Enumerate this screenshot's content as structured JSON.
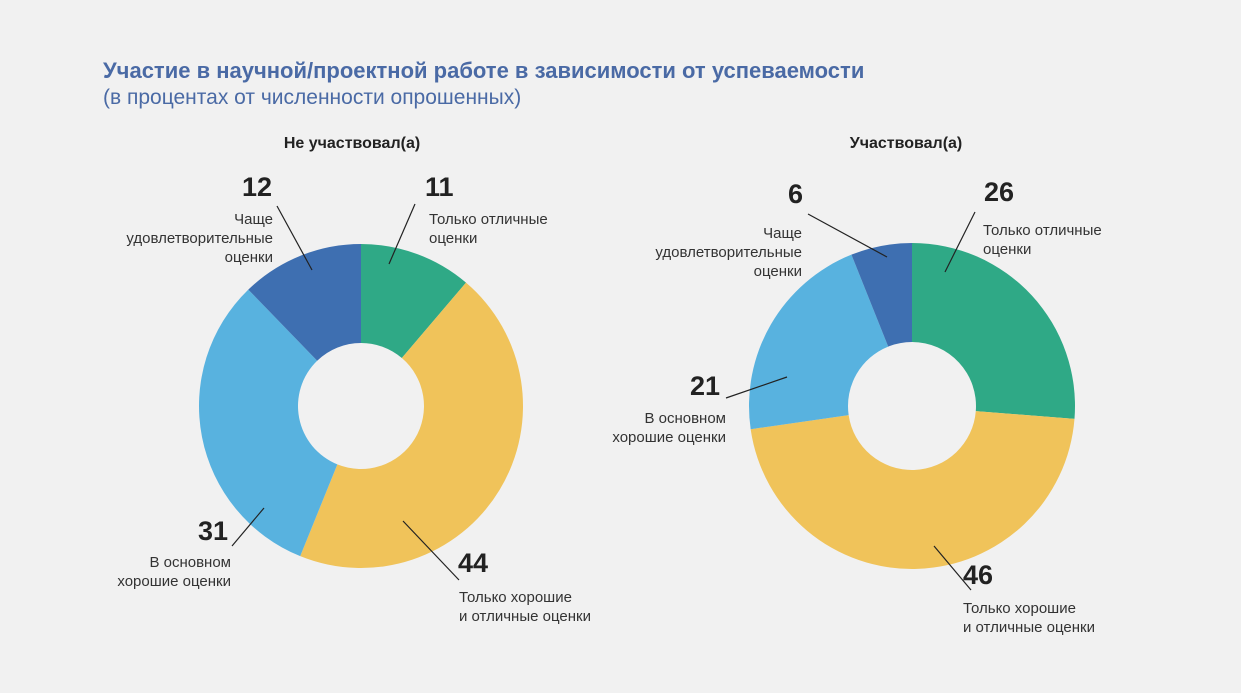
{
  "header": {
    "title": "Участие в научной/проектной работе в зависимости от успеваемости",
    "subtitle": "(в процентах от численности опрошенных)"
  },
  "colors": {
    "only_excellent": "#2fa986",
    "good_and_excellent": "#f0c35a",
    "mostly_good": "#58b2df",
    "mostly_satisfactory": "#3e6fb1"
  },
  "chart_data": [
    {
      "type": "pie",
      "title": "Не участвовал(а)",
      "categories": [
        "Только отличные оценки",
        "Только хорошие и отличные оценки",
        "В основном хорошие оценки",
        "Чаще удовлетворительные оценки"
      ],
      "values": [
        11,
        44,
        31,
        12
      ],
      "colors": [
        "#2fa986",
        "#f0c35a",
        "#58b2df",
        "#3e6fb1"
      ]
    },
    {
      "type": "pie",
      "title": "Участвовал(а)",
      "categories": [
        "Только отличные оценки",
        "Только хорошие и отличные оценки",
        "В основном хорошие оценки",
        "Чаще удовлетворительные оценки"
      ],
      "values": [
        26,
        46,
        21,
        6
      ],
      "colors": [
        "#2fa986",
        "#f0c35a",
        "#58b2df",
        "#3e6fb1"
      ]
    }
  ]
}
